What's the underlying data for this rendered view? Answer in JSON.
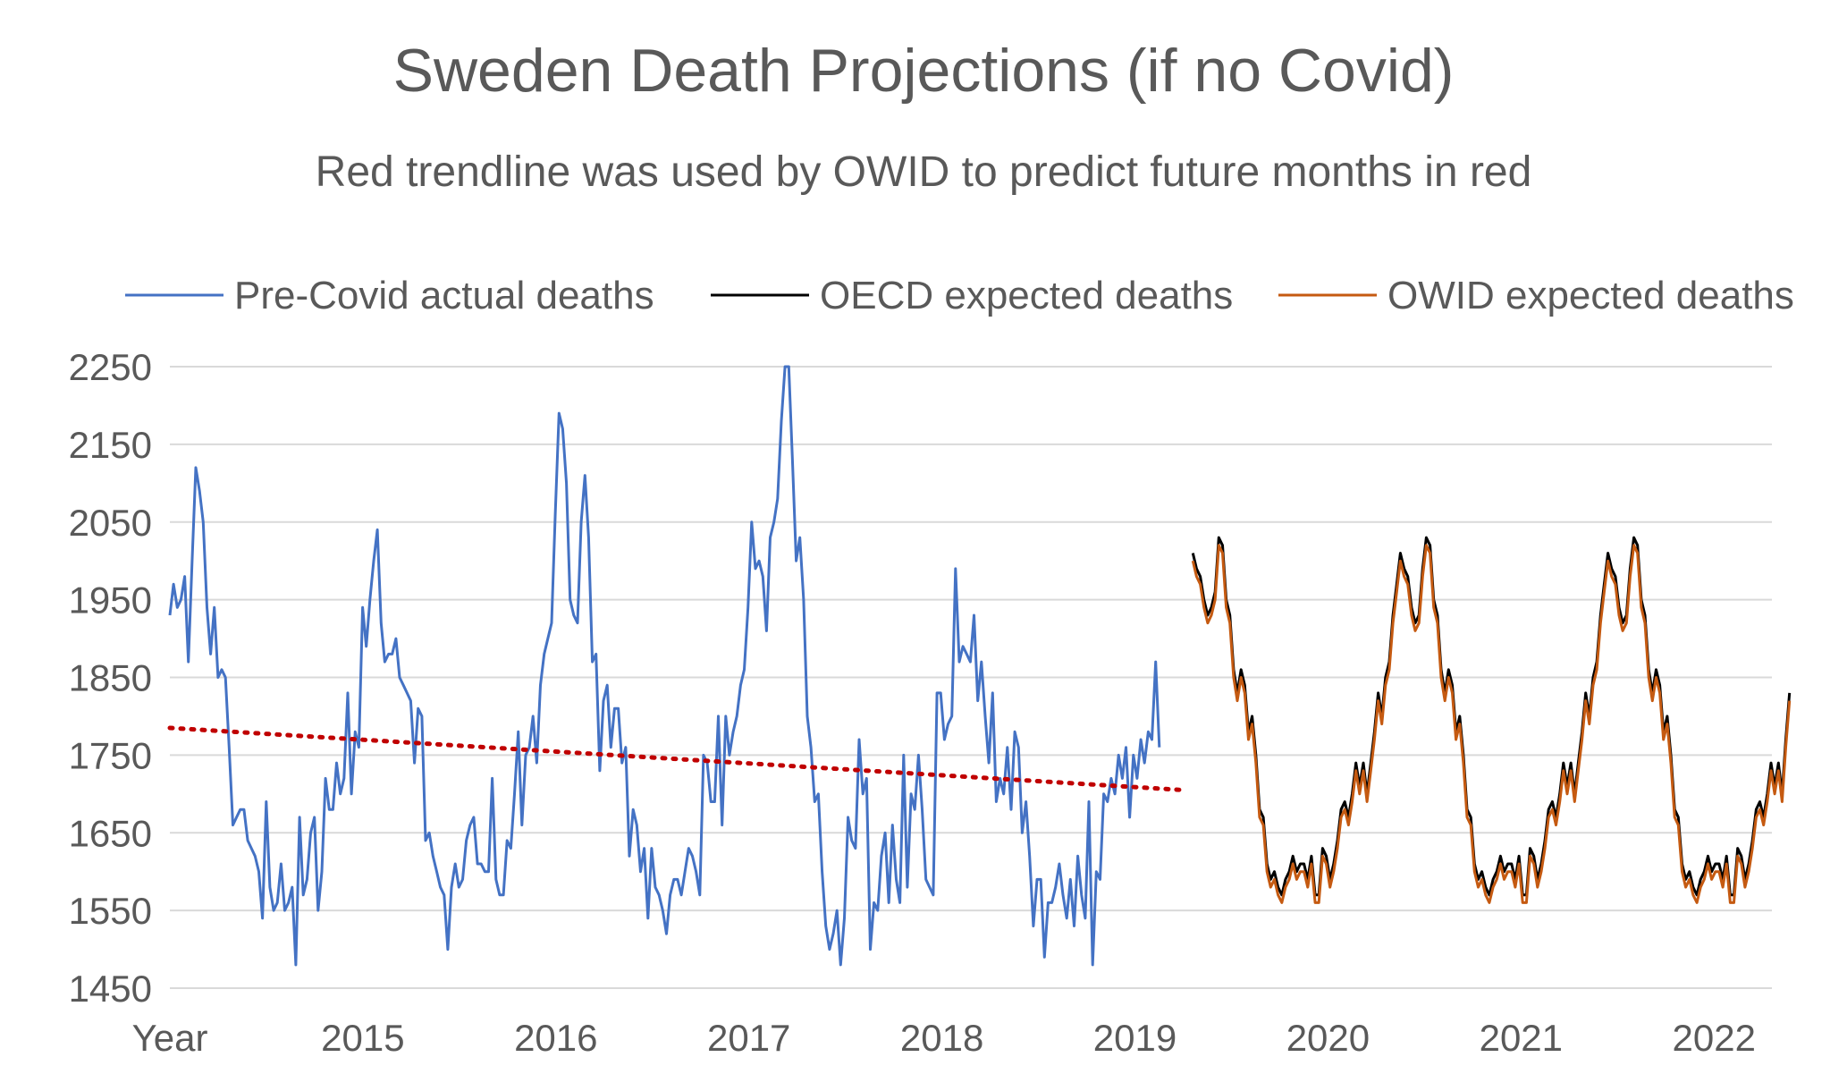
{
  "chart_data": {
    "type": "line",
    "title": "Sweden Death Projections (if no Covid)",
    "subtitle": "Red trendline was used by OWID to predict future months in red",
    "xlabel": "Year",
    "x_tick_labels": [
      "2015",
      "2016",
      "2017",
      "2018",
      "2019",
      "2020",
      "2021",
      "2022"
    ],
    "x_range": [
      2014,
      2022.3
    ],
    "ylim": [
      1450,
      2250
    ],
    "y_ticks": [
      1450,
      1550,
      1650,
      1750,
      1850,
      1950,
      2050,
      2150,
      2250
    ],
    "grid": "horizontal",
    "legend_position": "top",
    "colors": {
      "actual": "#4472C4",
      "oecd": "#000000",
      "owid": "#C55A11",
      "trend": "#C00000"
    },
    "series": [
      {
        "name": "Pre-Covid actual deaths",
        "x_start": 2014.0,
        "x_step": 0.0192,
        "values": [
          1930,
          1970,
          1940,
          1950,
          1980,
          1870,
          2000,
          2120,
          2090,
          2050,
          1940,
          1880,
          1940,
          1850,
          1860,
          1850,
          1760,
          1660,
          1670,
          1680,
          1680,
          1640,
          1630,
          1620,
          1600,
          1540,
          1690,
          1580,
          1550,
          1560,
          1610,
          1550,
          1560,
          1580,
          1480,
          1670,
          1570,
          1590,
          1650,
          1670,
          1550,
          1600,
          1720,
          1680,
          1680,
          1740,
          1700,
          1720,
          1830,
          1700,
          1780,
          1760,
          1940,
          1890,
          1950,
          2000,
          2040,
          1920,
          1870,
          1880,
          1880,
          1900,
          1850,
          1840,
          1830,
          1820,
          1740,
          1810,
          1800,
          1640,
          1650,
          1620,
          1600,
          1580,
          1570,
          1500,
          1580,
          1610,
          1580,
          1590,
          1640,
          1660,
          1670,
          1610,
          1610,
          1600,
          1600,
          1720,
          1590,
          1570,
          1570,
          1640,
          1630,
          1700,
          1780,
          1660,
          1750,
          1760,
          1800,
          1740,
          1840,
          1880,
          1900,
          1920,
          2060,
          2190,
          2170,
          2100,
          1950,
          1930,
          1920,
          2050,
          2110,
          2030,
          1870,
          1880,
          1730,
          1820,
          1840,
          1760,
          1810,
          1810,
          1740,
          1760,
          1620,
          1680,
          1660,
          1600,
          1630,
          1540,
          1630,
          1580,
          1570,
          1550,
          1520,
          1570,
          1590,
          1590,
          1570,
          1600,
          1630,
          1620,
          1600,
          1570,
          1750,
          1740,
          1690,
          1690,
          1800,
          1660,
          1800,
          1750,
          1780,
          1800,
          1840,
          1860,
          1940,
          2050,
          1990,
          2000,
          1980,
          1910,
          2030,
          2050,
          2080,
          2180,
          2250,
          2250,
          2130,
          2000,
          2030,
          1950,
          1800,
          1760,
          1690,
          1700,
          1600,
          1530,
          1500,
          1520,
          1550,
          1480,
          1540,
          1670,
          1640,
          1630,
          1770,
          1700,
          1720,
          1500,
          1560,
          1550,
          1620,
          1650,
          1560,
          1660,
          1590,
          1560,
          1750,
          1580,
          1700,
          1680,
          1750,
          1680,
          1590,
          1580,
          1570,
          1830,
          1830,
          1770,
          1790,
          1800,
          1990,
          1870,
          1890,
          1880,
          1870,
          1930,
          1820,
          1870,
          1800,
          1740,
          1830,
          1690,
          1720,
          1700,
          1760,
          1680,
          1780,
          1760,
          1650,
          1690,
          1620,
          1530,
          1590,
          1590,
          1490,
          1560,
          1560,
          1580,
          1610,
          1570,
          1540,
          1590,
          1530,
          1620,
          1570,
          1540,
          1690,
          1480,
          1600,
          1590,
          1700,
          1690,
          1720,
          1700,
          1750,
          1720,
          1760,
          1670,
          1750,
          1720,
          1770,
          1740,
          1780,
          1770,
          1870,
          1760
        ]
      },
      {
        "name": "OECD expected deaths",
        "x_start": 2019.3,
        "x_step": 0.0192,
        "values": [
          2010,
          1990,
          1980,
          1950,
          1930,
          1940,
          1960,
          2030,
          2020,
          1950,
          1930,
          1860,
          1830,
          1860,
          1840,
          1780,
          1800,
          1750,
          1680,
          1670,
          1610,
          1590,
          1600,
          1580,
          1570,
          1590,
          1600,
          1620,
          1600,
          1610,
          1610,
          1590,
          1620,
          1570,
          1570,
          1630,
          1620,
          1590,
          1610,
          1640,
          1680,
          1690,
          1670,
          1700,
          1740,
          1710,
          1740,
          1700,
          1740,
          1780,
          1830,
          1800,
          1850,
          1870,
          1930,
          1970,
          2010,
          1990,
          1980,
          1940,
          1920,
          1930,
          1990,
          2030,
          2020,
          1950,
          1930,
          1860,
          1830,
          1860,
          1840,
          1780,
          1800,
          1750,
          1680,
          1670,
          1610,
          1590,
          1600,
          1580,
          1570,
          1590,
          1600,
          1620,
          1600,
          1610,
          1610,
          1590,
          1620,
          1570,
          1570,
          1630,
          1620,
          1590,
          1610,
          1640,
          1680,
          1690,
          1670,
          1700,
          1740,
          1710,
          1740,
          1700,
          1740,
          1780,
          1830,
          1800,
          1850,
          1870,
          1930,
          1970,
          2010,
          1990,
          1980,
          1940,
          1920,
          1930,
          1990,
          2030,
          2020,
          1950,
          1930,
          1860,
          1830,
          1860,
          1840,
          1780,
          1800,
          1750,
          1680,
          1670,
          1610,
          1590,
          1600,
          1580,
          1570,
          1590,
          1600,
          1620,
          1600,
          1610,
          1610,
          1590,
          1620,
          1570,
          1570,
          1630,
          1620,
          1590,
          1610,
          1640,
          1680,
          1690,
          1670,
          1700,
          1740,
          1710,
          1740,
          1700,
          1770,
          1830
        ]
      },
      {
        "name": "OWID expected deaths",
        "x_start": 2019.3,
        "x_step": 0.0192,
        "values": [
          2000,
          1980,
          1970,
          1940,
          1920,
          1930,
          1950,
          2020,
          2010,
          1940,
          1920,
          1850,
          1820,
          1850,
          1830,
          1770,
          1790,
          1740,
          1670,
          1660,
          1600,
          1580,
          1590,
          1570,
          1560,
          1580,
          1590,
          1610,
          1590,
          1600,
          1600,
          1580,
          1610,
          1560,
          1560,
          1620,
          1610,
          1580,
          1600,
          1630,
          1670,
          1680,
          1660,
          1690,
          1730,
          1700,
          1730,
          1690,
          1730,
          1770,
          1820,
          1790,
          1840,
          1860,
          1920,
          1960,
          2000,
          1980,
          1970,
          1930,
          1910,
          1920,
          1980,
          2020,
          2010,
          1940,
          1920,
          1850,
          1820,
          1850,
          1830,
          1770,
          1790,
          1740,
          1670,
          1660,
          1600,
          1580,
          1590,
          1570,
          1560,
          1580,
          1590,
          1610,
          1590,
          1600,
          1600,
          1580,
          1610,
          1560,
          1560,
          1620,
          1610,
          1580,
          1600,
          1630,
          1670,
          1680,
          1660,
          1690,
          1730,
          1700,
          1730,
          1690,
          1730,
          1770,
          1820,
          1790,
          1840,
          1860,
          1920,
          1960,
          2000,
          1980,
          1970,
          1930,
          1910,
          1920,
          1980,
          2020,
          2010,
          1940,
          1920,
          1850,
          1820,
          1850,
          1830,
          1770,
          1790,
          1740,
          1670,
          1660,
          1600,
          1580,
          1590,
          1570,
          1560,
          1580,
          1590,
          1610,
          1590,
          1600,
          1600,
          1580,
          1610,
          1560,
          1560,
          1620,
          1610,
          1580,
          1600,
          1630,
          1670,
          1680,
          1660,
          1690,
          1730,
          1700,
          1730,
          1690,
          1760,
          1820
        ]
      }
    ],
    "trendline": {
      "style": "dotted",
      "x": [
        2014.0,
        2019.25
      ],
      "y": [
        1785,
        1705
      ]
    }
  }
}
